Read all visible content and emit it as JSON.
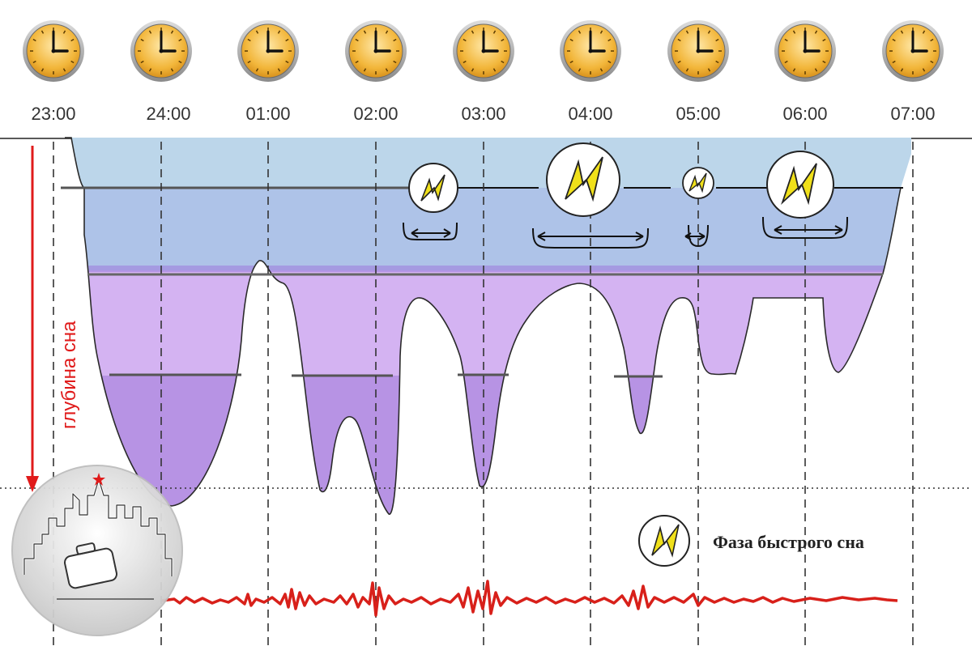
{
  "times": [
    "23:00",
    "24:00",
    "01:00",
    "02:00",
    "03:00",
    "04:00",
    "05:00",
    "06:00",
    "07:00"
  ],
  "y_axis_label": "глубина сна",
  "legend": {
    "label": "Фаза быстрого сна",
    "icon": "lightning-icon"
  },
  "colors": {
    "clock_face": "#f2b63a",
    "rem_band": "#bcd6ea",
    "light_band": "#aec3e8",
    "deep_band": "#d4b3f2",
    "deepest_band": "#b793e4",
    "depth_arrow": "#e01b1b",
    "ecg": "#d8201a",
    "lightning": "#f0e01a"
  }
}
